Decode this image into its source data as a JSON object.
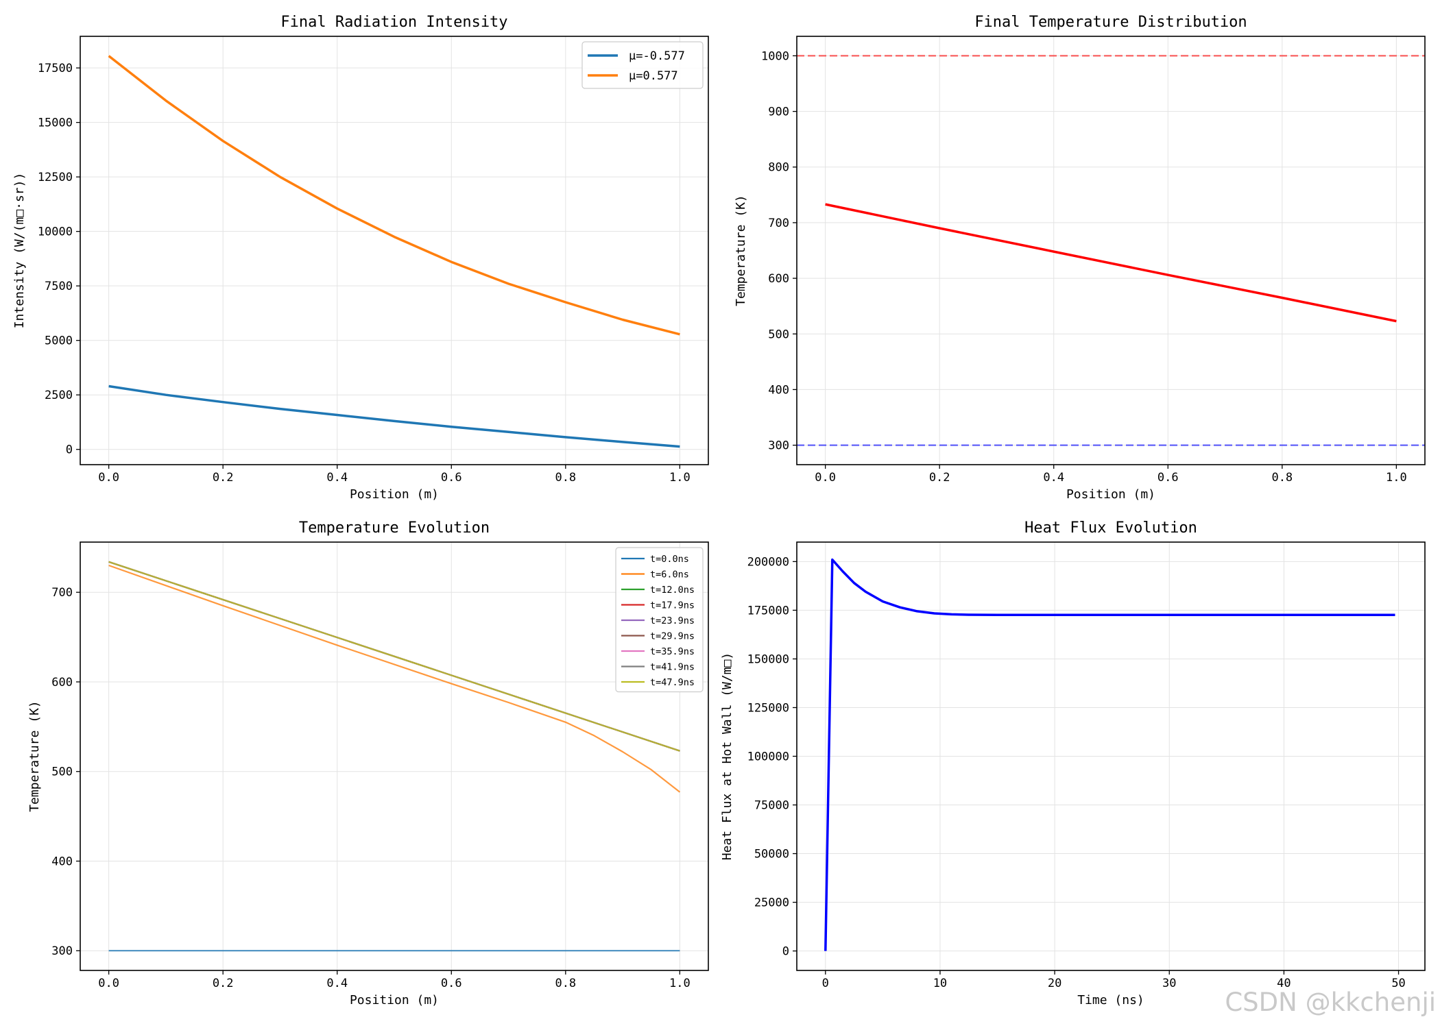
{
  "colors": {
    "tab_blue": "#1f77b4",
    "tab_orange": "#ff7f0e",
    "tab_green": "#2ca02c",
    "tab_red": "#d62728",
    "tab_purple": "#9467bd",
    "tab_brown": "#8c564b",
    "tab_pink": "#e377c2",
    "tab_gray": "#7f7f7f",
    "tab_olive": "#bcbd22",
    "pure_red": "#ff0000",
    "pure_blue": "#0000ff"
  },
  "watermark": "CSDN @kkchenji",
  "chart_data": [
    {
      "type": "line",
      "title": "Final Radiation Intensity",
      "xlabel": "Position (m)",
      "ylabel": "Intensity (W/(m□·sr))",
      "xlim": [
        -0.05,
        1.05
      ],
      "ylim": [
        -700,
        18950
      ],
      "xticks": [
        0.0,
        0.2,
        0.4,
        0.6,
        0.8,
        1.0
      ],
      "xtick_labels": [
        "0.0",
        "0.2",
        "0.4",
        "0.6",
        "0.8",
        "1.0"
      ],
      "yticks": [
        0,
        2500,
        5000,
        7500,
        10000,
        12500,
        15000,
        17500
      ],
      "ytick_labels": [
        "0",
        "2500",
        "5000",
        "7500",
        "10000",
        "12500",
        "15000",
        "17500"
      ],
      "grid": true,
      "legend": "top-right",
      "series": [
        {
          "name": "μ=-0.577",
          "color": "#1f77b4",
          "x": [
            0.0,
            0.1,
            0.2,
            0.3,
            0.4,
            0.5,
            0.6,
            0.7,
            0.8,
            0.9,
            1.0
          ],
          "y": [
            2900,
            2500,
            2170,
            1860,
            1580,
            1300,
            1040,
            800,
            560,
            340,
            130
          ]
        },
        {
          "name": "μ=0.577",
          "color": "#ff7f0e",
          "x": [
            0.0,
            0.1,
            0.2,
            0.3,
            0.4,
            0.5,
            0.6,
            0.7,
            0.8,
            0.9,
            1.0
          ],
          "y": [
            18050,
            16000,
            14150,
            12500,
            11050,
            9750,
            8600,
            7600,
            6750,
            5950,
            5280
          ]
        }
      ]
    },
    {
      "type": "line",
      "title": "Final Temperature Distribution",
      "xlabel": "Position (m)",
      "ylabel": "Temperature (K)",
      "xlim": [
        -0.05,
        1.05
      ],
      "ylim": [
        265,
        1035
      ],
      "xticks": [
        0.0,
        0.2,
        0.4,
        0.6,
        0.8,
        1.0
      ],
      "xtick_labels": [
        "0.0",
        "0.2",
        "0.4",
        "0.6",
        "0.8",
        "1.0"
      ],
      "yticks": [
        300,
        400,
        500,
        600,
        700,
        800,
        900,
        1000
      ],
      "ytick_labels": [
        "300",
        "400",
        "500",
        "600",
        "700",
        "800",
        "900",
        "1000"
      ],
      "grid": true,
      "hlines": [
        {
          "y": 1000,
          "color": "#ff0000",
          "style": "dashed"
        },
        {
          "y": 300,
          "color": "#0000ff",
          "style": "dashed"
        }
      ],
      "series": [
        {
          "color": "#ff0000",
          "x": [
            0.0,
            0.2,
            0.4,
            0.6,
            0.8,
            1.0
          ],
          "y": [
            733,
            690,
            648,
            606,
            565,
            523
          ]
        }
      ]
    },
    {
      "type": "line",
      "title": "Temperature Evolution",
      "xlabel": "Position (m)",
      "ylabel": "Temperature (K)",
      "xlim": [
        -0.05,
        1.05
      ],
      "ylim": [
        278,
        756
      ],
      "xticks": [
        0.0,
        0.2,
        0.4,
        0.6,
        0.8,
        1.0
      ],
      "xtick_labels": [
        "0.0",
        "0.2",
        "0.4",
        "0.6",
        "0.8",
        "1.0"
      ],
      "yticks": [
        300,
        400,
        500,
        600,
        700
      ],
      "ytick_labels": [
        "300",
        "400",
        "500",
        "600",
        "700"
      ],
      "grid": true,
      "legend": "top-right",
      "series": [
        {
          "name": "t=0.0ns",
          "color": "#1f77b4",
          "x": [
            0.0,
            1.0
          ],
          "y": [
            300,
            300
          ]
        },
        {
          "name": "t=6.0ns",
          "color": "#ff7f0e",
          "x": [
            0.0,
            0.2,
            0.4,
            0.6,
            0.7,
            0.8,
            0.85,
            0.9,
            0.95,
            1.0
          ],
          "y": [
            730,
            685,
            641,
            598,
            577,
            555,
            540,
            522,
            502,
            477
          ]
        },
        {
          "name": "t=12.0ns",
          "color": "#2ca02c",
          "x": [
            0.0,
            1.0
          ],
          "y": [
            734,
            523
          ]
        },
        {
          "name": "t=17.9ns",
          "color": "#d62728",
          "x": [
            0.0,
            1.0
          ],
          "y": [
            734,
            523
          ]
        },
        {
          "name": "t=23.9ns",
          "color": "#9467bd",
          "x": [
            0.0,
            1.0
          ],
          "y": [
            734,
            523
          ]
        },
        {
          "name": "t=29.9ns",
          "color": "#8c564b",
          "x": [
            0.0,
            1.0
          ],
          "y": [
            734,
            523
          ]
        },
        {
          "name": "t=35.9ns",
          "color": "#e377c2",
          "x": [
            0.0,
            1.0
          ],
          "y": [
            734,
            523
          ]
        },
        {
          "name": "t=41.9ns",
          "color": "#7f7f7f",
          "x": [
            0.0,
            1.0
          ],
          "y": [
            734,
            523
          ]
        },
        {
          "name": "t=47.9ns",
          "color": "#bcbd22",
          "x": [
            0.0,
            1.0
          ],
          "y": [
            734,
            523
          ]
        }
      ]
    },
    {
      "type": "line",
      "title": "Heat Flux Evolution",
      "xlabel": "Time (ns)",
      "ylabel": "Heat Flux at Hot Wall (W/m□)",
      "xlim": [
        -2.5,
        52.3
      ],
      "ylim": [
        -10000,
        210000
      ],
      "xticks": [
        0,
        10,
        20,
        30,
        40,
        50
      ],
      "xtick_labels": [
        "0",
        "10",
        "20",
        "30",
        "40",
        "50"
      ],
      "yticks": [
        0,
        25000,
        50000,
        75000,
        100000,
        125000,
        150000,
        175000,
        200000
      ],
      "ytick_labels": [
        "0",
        "25000",
        "50000",
        "75000",
        "100000",
        "125000",
        "150000",
        "175000",
        "200000"
      ],
      "grid": true,
      "series": [
        {
          "color": "#0000ff",
          "x": [
            0.0,
            0.6,
            1.5,
            2.5,
            3.5,
            5,
            6.5,
            8,
            9.5,
            11,
            12.5,
            15,
            20,
            30,
            40,
            49.7
          ],
          "y": [
            0,
            201000,
            195000,
            189000,
            184500,
            179500,
            176500,
            174500,
            173400,
            172900,
            172700,
            172600,
            172600,
            172600,
            172600,
            172600
          ]
        }
      ]
    }
  ]
}
